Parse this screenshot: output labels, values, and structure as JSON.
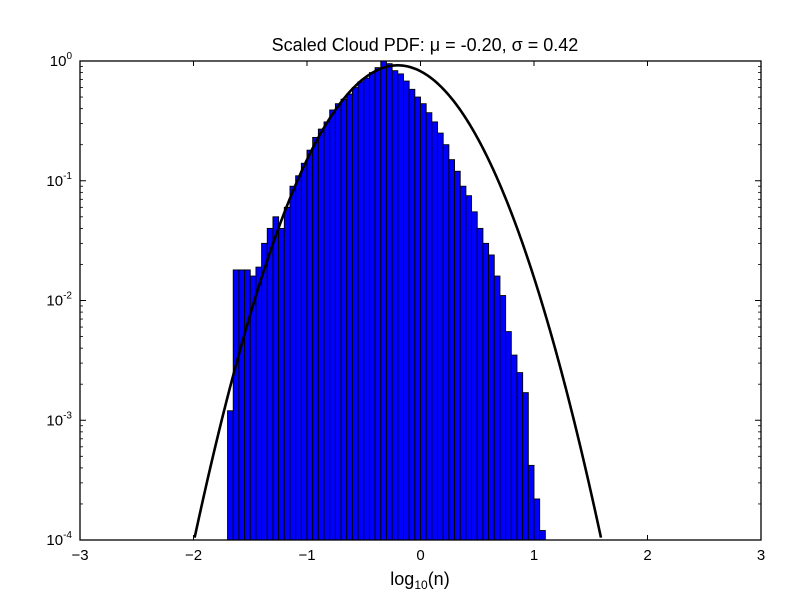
{
  "chart_data": {
    "type": "bar",
    "title": "Scaled Cloud PDF: μ = -0.20, σ = 0.42",
    "xlabel": {
      "prefix": "log",
      "subscript": "10",
      "suffix": "(n)"
    },
    "ylabel": "",
    "xlim": [
      -3,
      3
    ],
    "ylim": [
      0.0001,
      1
    ],
    "yscale": "log",
    "grid": false,
    "x_ticks": [
      "−3",
      "−2",
      "−1",
      "0",
      "1",
      "2",
      "3"
    ],
    "x_tick_values": [
      -3,
      -2,
      -1,
      0,
      1,
      2,
      3
    ],
    "y_ticks": [
      {
        "base": "10",
        "exp": "-4",
        "value": 0.0001
      },
      {
        "base": "10",
        "exp": "-3",
        "value": 0.001
      },
      {
        "base": "10",
        "exp": "-2",
        "value": 0.01
      },
      {
        "base": "10",
        "exp": "-1",
        "value": 0.1
      },
      {
        "base": "10",
        "exp": "0",
        "value": 1
      }
    ],
    "histogram": {
      "bin_start": -1.7,
      "bin_width": 0.05,
      "bar_color": "#0000ff",
      "values": [
        0.0012,
        0.018,
        0.018,
        0.018,
        0.016,
        0.019,
        0.03,
        0.04,
        0.05,
        0.04,
        0.06,
        0.09,
        0.11,
        0.14,
        0.18,
        0.23,
        0.27,
        0.31,
        0.39,
        0.44,
        0.48,
        0.53,
        0.6,
        0.67,
        0.72,
        0.8,
        0.88,
        1.0,
        0.95,
        0.83,
        0.78,
        0.68,
        0.58,
        0.5,
        0.44,
        0.37,
        0.31,
        0.25,
        0.2,
        0.15,
        0.12,
        0.09,
        0.075,
        0.055,
        0.04,
        0.03,
        0.024,
        0.016,
        0.011,
        0.0055,
        0.0035,
        0.0025,
        0.0017,
        0.00042,
        0.00022,
        0.00012
      ]
    },
    "series": [
      {
        "type": "line",
        "mu": -0.2,
        "sigma": 0.42,
        "color": "#000000"
      }
    ]
  }
}
